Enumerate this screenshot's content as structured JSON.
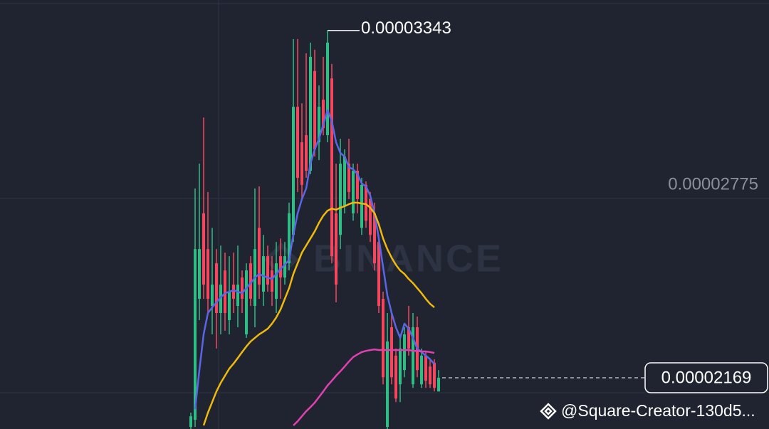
{
  "chart_data": {
    "type": "candlestick",
    "watermark": "BINANCE",
    "footer": "@Square-Creator-130d5...",
    "ylim": [
      1.996e-05,
      3.446e-05
    ],
    "yticks": [
      2.775e-05
    ],
    "grid": true,
    "up_color": "#2ebd85",
    "down_color": "#f6465d",
    "open": [
      2.003e-05,
      2.027e-05,
      2.436e-05,
      2.725e-05,
      2.604e-05,
      2.412e-05,
      2.556e-05,
      2.388e-05,
      2.532e-05,
      2.364e-05,
      2.484e-05,
      2.412e-05,
      2.508e-05,
      2.316e-05,
      2.556e-05,
      2.412e-05,
      2.676e-05,
      2.46e-05,
      2.58e-05,
      2.532e-05,
      2.436e-05,
      2.58e-05,
      2.508e-05,
      2.556e-05,
      2.652e-05,
      3.085e-05,
      2.965e-05,
      2.989e-05,
      2.869e-05,
      3.206e-05,
      2.965e-05,
      3.109e-05,
      2.989e-05,
      3.181e-05,
      2.725e-05,
      2.652e-05,
      2.749e-05,
      2.893e-05,
      2.725e-05,
      2.869e-05,
      2.676e-05,
      2.821e-05,
      2.773e-05,
      2.725e-05,
      2.628e-05,
      2.436e-05,
      2.003e-05,
      2.34e-05,
      2.244e-05,
      2.147e-05,
      2.195e-05,
      2.34e-05,
      2.147e-05,
      2.34e-05,
      2.147e-05,
      2.244e-05,
      2.207e-05,
      2.22e-05,
      2.123e-05
    ],
    "high": [
      2.051e-05,
      2.809e-05,
      2.893e-05,
      3.049e-05,
      2.797e-05,
      2.676e-05,
      2.604e-05,
      2.616e-05,
      2.592e-05,
      2.58e-05,
      2.592e-05,
      2.616e-05,
      2.532e-05,
      2.556e-05,
      2.58e-05,
      2.809e-05,
      2.816e-05,
      2.652e-05,
      2.616e-05,
      2.58e-05,
      2.628e-05,
      2.64e-05,
      2.628e-05,
      2.761e-05,
      3.314e-05,
      3.314e-05,
      3.097e-05,
      3.266e-05,
      3.302e-05,
      3.278e-05,
      3.157e-05,
      3.254e-05,
      3.343e-05,
      3.23e-05,
      2.893e-05,
      2.977e-05,
      2.941e-05,
      2.977e-05,
      2.893e-05,
      2.893e-05,
      2.845e-05,
      2.833e-05,
      2.797e-05,
      2.761e-05,
      2.652e-05,
      2.46e-05,
      2.388e-05,
      2.388e-05,
      2.268e-05,
      2.316e-05,
      2.34e-05,
      2.412e-05,
      2.388e-05,
      2.376e-05,
      2.268e-05,
      2.256e-05,
      2.232e-05,
      2.232e-05,
      2.195e-05
    ],
    "low": [
      1.955e-05,
      2.003e-05,
      2.364e-05,
      2.436e-05,
      2.388e-05,
      2.316e-05,
      2.268e-05,
      2.316e-05,
      2.328e-05,
      2.316e-05,
      2.388e-05,
      2.34e-05,
      2.388e-05,
      2.304e-05,
      2.412e-05,
      2.34e-05,
      2.436e-05,
      2.412e-05,
      2.46e-05,
      2.412e-05,
      2.388e-05,
      2.436e-05,
      2.484e-05,
      2.532e-05,
      2.628e-05,
      2.797e-05,
      2.773e-05,
      2.845e-05,
      2.857e-05,
      2.917e-05,
      2.905e-05,
      2.989e-05,
      2.965e-05,
      2.556e-05,
      2.424e-05,
      2.604e-05,
      2.725e-05,
      2.773e-05,
      2.7e-05,
      2.725e-05,
      2.652e-05,
      2.676e-05,
      2.628e-05,
      2.532e-05,
      2.388e-05,
      2.147e-05,
      1.979e-05,
      2.147e-05,
      2.087e-05,
      2.087e-05,
      2.171e-05,
      2.244e-05,
      2.135e-05,
      2.171e-05,
      2.135e-05,
      2.135e-05,
      2.135e-05,
      2.123e-05,
      2.123e-05
    ],
    "close": [
      2.039e-05,
      2.604e-05,
      2.604e-05,
      2.484e-05,
      2.436e-05,
      2.484e-05,
      2.388e-05,
      2.484e-05,
      2.388e-05,
      2.46e-05,
      2.436e-05,
      2.484e-05,
      2.436e-05,
      2.532e-05,
      2.436e-05,
      2.604e-05,
      2.484e-05,
      2.58e-05,
      2.484e-05,
      2.46e-05,
      2.556e-05,
      2.508e-05,
      2.58e-05,
      2.725e-05,
      3.085e-05,
      2.845e-05,
      2.821e-05,
      2.869e-05,
      3.254e-05,
      2.941e-05,
      3.085e-05,
      3.013e-05,
      3.302e-05,
      2.58e-05,
      2.484e-05,
      2.893e-05,
      2.917e-05,
      2.797e-05,
      2.869e-05,
      2.773e-05,
      2.821e-05,
      2.7e-05,
      2.652e-05,
      2.556e-05,
      2.412e-05,
      2.171e-05,
      2.292e-05,
      2.171e-05,
      2.099e-05,
      2.268e-05,
      2.316e-05,
      2.268e-05,
      2.34e-05,
      2.195e-05,
      2.244e-05,
      2.159e-05,
      2.147e-05,
      2.135e-05,
      2.169e-05
    ],
    "series": [
      {
        "color": "#5a66e6",
        "values": [
          null,
          2.063e-05,
          2.195e-05,
          2.316e-05,
          2.388e-05,
          2.407e-05,
          2.424e-05,
          2.441e-05,
          2.455e-05,
          2.46e-05,
          2.465e-05,
          2.46e-05,
          2.455e-05,
          2.472e-05,
          2.489e-05,
          2.508e-05,
          2.52e-05,
          2.513e-05,
          2.508e-05,
          2.503e-05,
          2.52e-05,
          2.537e-05,
          2.551e-05,
          2.568e-05,
          2.652e-05,
          2.725e-05,
          2.773e-05,
          2.809e-05,
          2.893e-05,
          2.941e-05,
          2.977e-05,
          3.025e-05,
          3.073e-05,
          3.037e-05,
          2.965e-05,
          2.929e-05,
          2.917e-05,
          2.881e-05,
          2.874e-05,
          2.857e-05,
          2.826e-05,
          2.816e-05,
          2.785e-05,
          2.725e-05,
          2.64e-05,
          2.544e-05,
          2.448e-05,
          2.388e-05,
          2.34e-05,
          2.304e-05,
          2.352e-05,
          2.335e-05,
          2.304e-05,
          2.268e-05,
          2.256e-05,
          2.244e-05,
          2.232e-05,
          2.215e-05,
          null
        ]
      },
      {
        "color": "#f0b90b",
        "values": [
          null,
          null,
          null,
          2.008e-05,
          2.051e-05,
          2.087e-05,
          2.123e-05,
          2.152e-05,
          2.176e-05,
          2.2e-05,
          2.217e-05,
          2.236e-05,
          2.256e-05,
          2.275e-05,
          2.292e-05,
          2.304e-05,
          2.316e-05,
          2.325e-05,
          2.335e-05,
          2.352e-05,
          2.373e-05,
          2.4e-05,
          2.436e-05,
          2.472e-05,
          2.52e-05,
          2.556e-05,
          2.592e-05,
          2.616e-05,
          2.64e-05,
          2.664e-05,
          2.693e-05,
          2.717e-05,
          2.734e-05,
          2.741e-05,
          2.737e-05,
          2.744e-05,
          2.749e-05,
          2.756e-05,
          2.761e-05,
          2.761e-05,
          2.758e-05,
          2.756e-05,
          2.744e-05,
          2.725e-05,
          2.688e-05,
          2.64e-05,
          2.604e-05,
          2.575e-05,
          2.551e-05,
          2.532e-05,
          2.52e-05,
          2.503e-05,
          2.489e-05,
          2.472e-05,
          2.455e-05,
          2.436e-05,
          2.419e-05,
          2.407e-05,
          null
        ]
      },
      {
        "color": "#e040b0",
        "values": [
          null,
          null,
          null,
          null,
          null,
          null,
          null,
          null,
          null,
          null,
          null,
          null,
          null,
          null,
          null,
          null,
          null,
          null,
          null,
          null,
          null,
          null,
          null,
          null,
          2.008e-05,
          2.022e-05,
          2.039e-05,
          2.056e-05,
          2.07e-05,
          2.085e-05,
          2.104e-05,
          2.123e-05,
          2.143e-05,
          2.159e-05,
          2.176e-05,
          2.191e-05,
          2.207e-05,
          2.224e-05,
          2.239e-05,
          2.248e-05,
          2.256e-05,
          2.26e-05,
          2.263e-05,
          2.265e-05,
          2.263e-05,
          2.263e-05,
          2.263e-05,
          2.263e-05,
          2.263e-05,
          2.263e-05,
          2.263e-05,
          2.263e-05,
          2.26e-05,
          2.26e-05,
          2.258e-05,
          2.258e-05,
          2.256e-05,
          2.253e-05,
          null
        ]
      }
    ]
  }
}
